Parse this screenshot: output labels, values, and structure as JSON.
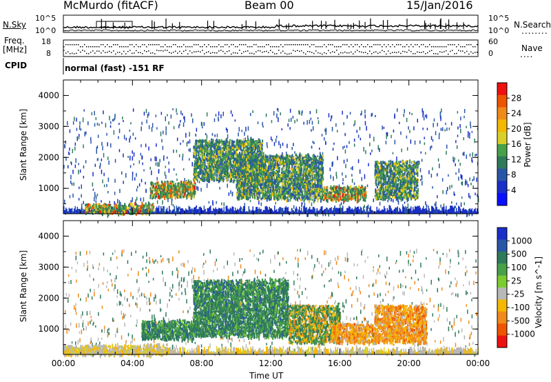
{
  "header": {
    "station": "McMurdo (fitACF)",
    "beam": "Beam 00",
    "date": "15/Jan/2016"
  },
  "status_panel": {
    "nsky_label": "N.Sky",
    "nsky_ticks": [
      "10^5",
      "10^0"
    ],
    "nsearch_label": "N.Search",
    "nsearch_dots": "........",
    "nsearch_ticks": [
      "10^5",
      "10^0"
    ],
    "freq_label": "Freq.",
    "freq_unit": "[MHz]",
    "freq_ticks": [
      "18",
      "8"
    ],
    "nave_label": "Nave",
    "nave_dots": "....",
    "nave_ticks": [
      "60",
      "0"
    ],
    "cpid_label": "CPID",
    "cpid_text": "normal (fast) -151 RF"
  },
  "chart_data": [
    {
      "type": "heatmap",
      "title": "",
      "ylabel": "Slant Range [km]",
      "y_ticks": [
        "4000",
        "3000",
        "2000",
        "1000"
      ],
      "ylim": [
        180,
        4500
      ],
      "colorbar": {
        "label": "Power [dB]",
        "ticks": [
          "28",
          "24",
          "20",
          "16",
          "12",
          "8",
          "4"
        ],
        "colors": [
          "#ee1111",
          "#ee5500",
          "#f08a1a",
          "#f4b800",
          "#d8d028",
          "#48a048",
          "#2f7a5a",
          "#2a56a8",
          "#1a2ec8",
          "#0a10ff"
        ]
      },
      "patches": [
        {
          "t": [
            1.2,
            5.2
          ],
          "r": [
            240,
            520
          ],
          "level": "high"
        },
        {
          "t": [
            5.0,
            7.6
          ],
          "r": [
            750,
            1250
          ],
          "level": "high"
        },
        {
          "t": [
            7.5,
            11.5
          ],
          "r": [
            1300,
            2600
          ],
          "level": "mid"
        },
        {
          "t": [
            10.0,
            15.0
          ],
          "r": [
            700,
            2100
          ],
          "level": "mid"
        },
        {
          "t": [
            15.0,
            17.5
          ],
          "r": [
            650,
            1100
          ],
          "level": "high"
        },
        {
          "t": [
            18.0,
            20.5
          ],
          "r": [
            700,
            1900
          ],
          "level": "mid"
        }
      ]
    },
    {
      "type": "heatmap",
      "title": "",
      "ylabel": "Slant Range [km]",
      "xlabel": "Time UT",
      "x_ticks": [
        "00:00",
        "04:00",
        "08:00",
        "12:00",
        "16:00",
        "20:00",
        "00:00"
      ],
      "xlim": [
        0,
        24
      ],
      "y_ticks": [
        "4000",
        "3000",
        "2000",
        "1000"
      ],
      "ylim": [
        180,
        4500
      ],
      "colorbar": {
        "label": "Velocity [m s^-1]",
        "unit_suffix": "-1",
        "ticks": [
          "1000",
          "500",
          "100",
          "25",
          "-25",
          "-100",
          "-500",
          "-1000"
        ],
        "colors": [
          "#1a2ec8",
          "#2a56a8",
          "#2f7a5a",
          "#48a048",
          "#7ccc30",
          "#b8b8b8",
          "#f4b800",
          "#f08a1a",
          "#ee5500",
          "#ee1111"
        ]
      },
      "patches": [
        {
          "t": [
            0.0,
            6.0
          ],
          "r": [
            200,
            500
          ],
          "level": "ground"
        },
        {
          "t": [
            4.5,
            7.5
          ],
          "r": [
            700,
            1300
          ],
          "level": "pos"
        },
        {
          "t": [
            7.5,
            13.0
          ],
          "r": [
            800,
            2600
          ],
          "level": "pos"
        },
        {
          "t": [
            13.0,
            16.0
          ],
          "r": [
            600,
            1800
          ],
          "level": "mixed"
        },
        {
          "t": [
            15.5,
            18.0
          ],
          "r": [
            600,
            1200
          ],
          "level": "neg"
        },
        {
          "t": [
            18.0,
            21.0
          ],
          "r": [
            600,
            1800
          ],
          "level": "neg"
        }
      ]
    }
  ]
}
